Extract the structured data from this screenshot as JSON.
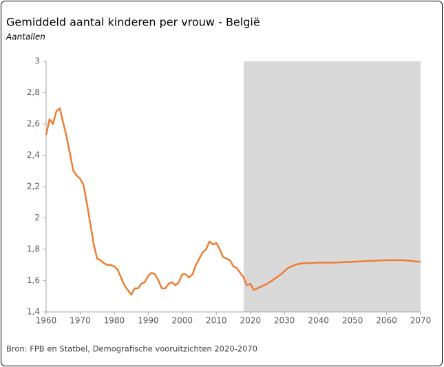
{
  "chart_data": {
    "type": "line",
    "title": "Gemiddeld aantal kinderen per vrouw - België",
    "subtitle": "Aantallen",
    "source": "Bron: FPB en Statbel, Demografische vooruitzichten 2020-2070",
    "color": "#ed7d31",
    "shaded_region": {
      "xlim": [
        2018,
        2070
      ],
      "color": "#d9d9d9"
    },
    "x": [
      1960,
      1961,
      1962,
      1963,
      1964,
      1965,
      1966,
      1967,
      1968,
      1969,
      1970,
      1971,
      1972,
      1973,
      1974,
      1975,
      1976,
      1977,
      1978,
      1979,
      1980,
      1981,
      1982,
      1983,
      1984,
      1985,
      1986,
      1987,
      1988,
      1989,
      1990,
      1991,
      1992,
      1993,
      1994,
      1995,
      1996,
      1997,
      1998,
      1999,
      2000,
      2001,
      2002,
      2003,
      2004,
      2005,
      2006,
      2007,
      2008,
      2009,
      2010,
      2011,
      2012,
      2013,
      2014,
      2015,
      2016,
      2017,
      2018,
      2019,
      2020,
      2021,
      2022,
      2023,
      2024,
      2025,
      2026,
      2027,
      2028,
      2029,
      2030,
      2031,
      2032,
      2033,
      2034,
      2035,
      2040,
      2045,
      2050,
      2055,
      2060,
      2065,
      2070
    ],
    "values": [
      2.53,
      2.63,
      2.6,
      2.68,
      2.7,
      2.61,
      2.52,
      2.41,
      2.3,
      2.27,
      2.25,
      2.21,
      2.09,
      1.96,
      1.83,
      1.74,
      1.73,
      1.71,
      1.7,
      1.7,
      1.69,
      1.67,
      1.62,
      1.57,
      1.54,
      1.51,
      1.55,
      1.55,
      1.58,
      1.59,
      1.63,
      1.65,
      1.64,
      1.6,
      1.55,
      1.55,
      1.58,
      1.59,
      1.57,
      1.59,
      1.64,
      1.64,
      1.62,
      1.64,
      1.7,
      1.74,
      1.78,
      1.8,
      1.85,
      1.83,
      1.84,
      1.8,
      1.75,
      1.74,
      1.73,
      1.69,
      1.68,
      1.65,
      1.62,
      1.57,
      1.58,
      1.54,
      1.55,
      1.56,
      1.57,
      1.58,
      1.595,
      1.61,
      1.625,
      1.64,
      1.66,
      1.68,
      1.69,
      1.7,
      1.705,
      1.71,
      1.715,
      1.715,
      1.72,
      1.725,
      1.73,
      1.73,
      1.72
    ],
    "xlim": [
      1960,
      2070
    ],
    "xticks": [
      1960,
      1970,
      1980,
      1990,
      2000,
      2010,
      2020,
      2030,
      2040,
      2050,
      2060,
      2070
    ],
    "ylim": [
      1.4,
      3
    ],
    "yticks": [
      {
        "value": 1.4,
        "label": "1,4"
      },
      {
        "value": 1.6,
        "label": "1,6"
      },
      {
        "value": 1.8,
        "label": "1,8"
      },
      2,
      {
        "value": 2.2,
        "label": "2,2"
      },
      {
        "value": 2.4,
        "label": "2,4"
      },
      {
        "value": 2.6,
        "label": "2,6"
      },
      {
        "value": 2.8,
        "label": "2,8"
      },
      3
    ]
  }
}
